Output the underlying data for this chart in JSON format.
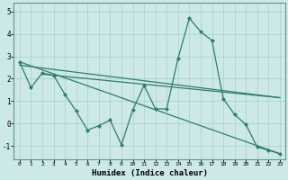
{
  "xlabel": "Humidex (Indice chaleur)",
  "bg_color": "#cce8e8",
  "line_color": "#2d7d6e",
  "grid_color": "#aacfcf",
  "xlim": [
    -0.5,
    23.5
  ],
  "ylim": [
    -1.6,
    5.4
  ],
  "yticks": [
    -1,
    0,
    1,
    2,
    3,
    4,
    5
  ],
  "xticks": [
    0,
    1,
    2,
    3,
    4,
    5,
    6,
    7,
    8,
    9,
    10,
    11,
    12,
    13,
    14,
    15,
    16,
    17,
    18,
    19,
    20,
    21,
    22,
    23
  ],
  "main_x": [
    0,
    1,
    2,
    3,
    4,
    5,
    6,
    7,
    8,
    9,
    10,
    11,
    12,
    13,
    14,
    15,
    16,
    17,
    18,
    19,
    20,
    21,
    22,
    23
  ],
  "main_y": [
    2.75,
    1.6,
    2.25,
    2.15,
    1.3,
    0.55,
    -0.3,
    -0.1,
    0.15,
    -0.95,
    0.6,
    1.7,
    0.65,
    0.65,
    2.9,
    4.7,
    4.1,
    3.7,
    1.1,
    0.4,
    -0.05,
    -1.05,
    -1.2,
    -1.35
  ],
  "trend1_x": [
    0,
    23
  ],
  "trend1_y": [
    2.75,
    -1.35
  ],
  "trend2_x": [
    0,
    23
  ],
  "trend2_y": [
    2.6,
    1.15
  ],
  "trend3_x": [
    2,
    23
  ],
  "trend3_y": [
    2.2,
    1.15
  ]
}
